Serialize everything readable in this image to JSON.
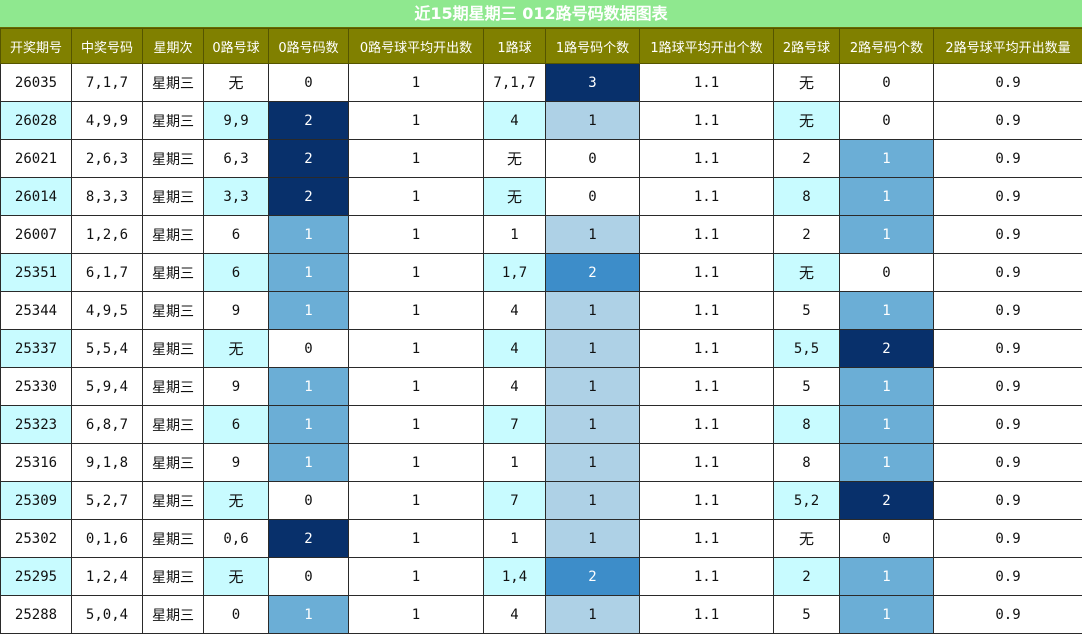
{
  "title": "近15期星期三 012路号码数据图表",
  "headers": [
    "开奖期号",
    "中奖号码",
    "星期次",
    "0路号球",
    "0路号码数",
    "0路号球平均开出数",
    "1路球",
    "1路号码个数",
    "1路球平均开出个数",
    "2路号球",
    "2路号码个数",
    "2路号球平均开出数量"
  ],
  "colors": {
    "header_bg": "#808000",
    "title_bg": "#8fe88f",
    "row_alt": "#c8fbff",
    "dark": "#08306b",
    "mid": "#3d8dc9",
    "light": "#6baed6",
    "pale": "#aed1e6"
  },
  "rows": [
    [
      "26035",
      "7,1,7",
      "星期三",
      "无",
      "0",
      "1",
      "7,1,7",
      "3",
      "1.1",
      "无",
      "0",
      "0.9"
    ],
    [
      "26028",
      "4,9,9",
      "星期三",
      "9,9",
      "2",
      "1",
      "4",
      "1",
      "1.1",
      "无",
      "0",
      "0.9"
    ],
    [
      "26021",
      "2,6,3",
      "星期三",
      "6,3",
      "2",
      "1",
      "无",
      "0",
      "1.1",
      "2",
      "1",
      "0.9"
    ],
    [
      "26014",
      "8,3,3",
      "星期三",
      "3,3",
      "2",
      "1",
      "无",
      "0",
      "1.1",
      "8",
      "1",
      "0.9"
    ],
    [
      "26007",
      "1,2,6",
      "星期三",
      "6",
      "1",
      "1",
      "1",
      "1",
      "1.1",
      "2",
      "1",
      "0.9"
    ],
    [
      "25351",
      "6,1,7",
      "星期三",
      "6",
      "1",
      "1",
      "1,7",
      "2",
      "1.1",
      "无",
      "0",
      "0.9"
    ],
    [
      "25344",
      "4,9,5",
      "星期三",
      "9",
      "1",
      "1",
      "4",
      "1",
      "1.1",
      "5",
      "1",
      "0.9"
    ],
    [
      "25337",
      "5,5,4",
      "星期三",
      "无",
      "0",
      "1",
      "4",
      "1",
      "1.1",
      "5,5",
      "2",
      "0.9"
    ],
    [
      "25330",
      "5,9,4",
      "星期三",
      "9",
      "1",
      "1",
      "4",
      "1",
      "1.1",
      "5",
      "1",
      "0.9"
    ],
    [
      "25323",
      "6,8,7",
      "星期三",
      "6",
      "1",
      "1",
      "7",
      "1",
      "1.1",
      "8",
      "1",
      "0.9"
    ],
    [
      "25316",
      "9,1,8",
      "星期三",
      "9",
      "1",
      "1",
      "1",
      "1",
      "1.1",
      "8",
      "1",
      "0.9"
    ],
    [
      "25309",
      "5,2,7",
      "星期三",
      "无",
      "0",
      "1",
      "7",
      "1",
      "1.1",
      "5,2",
      "2",
      "0.9"
    ],
    [
      "25302",
      "0,1,6",
      "星期三",
      "0,6",
      "2",
      "1",
      "1",
      "1",
      "1.1",
      "无",
      "0",
      "0.9"
    ],
    [
      "25295",
      "1,2,4",
      "星期三",
      "无",
      "0",
      "1",
      "1,4",
      "2",
      "1.1",
      "2",
      "1",
      "0.9"
    ],
    [
      "25288",
      "5,0,4",
      "星期三",
      "0",
      "1",
      "1",
      "4",
      "1",
      "1.1",
      "5",
      "1",
      "0.9"
    ]
  ]
}
